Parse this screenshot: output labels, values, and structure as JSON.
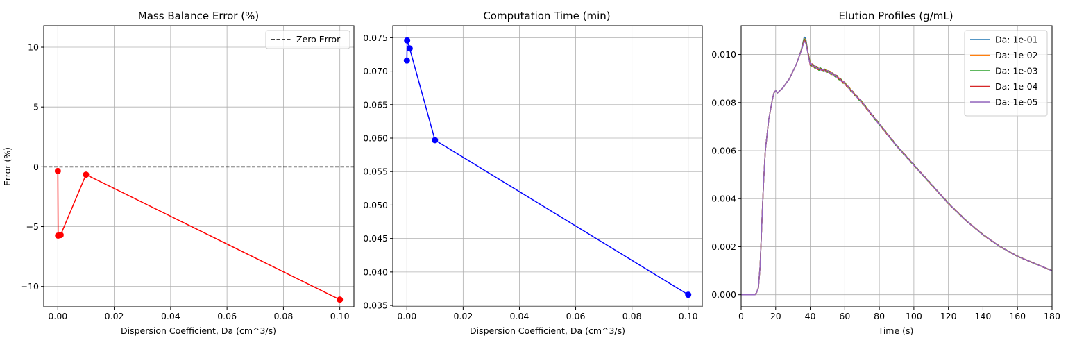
{
  "chart_data": [
    {
      "type": "line",
      "title": "Mass Balance Error (%)",
      "xlabel": "Dispersion Coefficient, Da (cm^3/s)",
      "ylabel": "Error (%)",
      "xlim": [
        -0.005,
        0.105
      ],
      "ylim": [
        -11.7,
        11.8
      ],
      "xticks": [
        0.0,
        0.02,
        0.04,
        0.06,
        0.08,
        0.1
      ],
      "xtick_labels": [
        "0.00",
        "0.02",
        "0.04",
        "0.06",
        "0.08",
        "0.10"
      ],
      "yticks": [
        -10,
        -5,
        0,
        5,
        10
      ],
      "ytick_labels": [
        "−10",
        "−5",
        "0",
        "5",
        "10"
      ],
      "grid": true,
      "legend_position": "top-right",
      "series": [
        {
          "x": [
            1e-05,
            0.0001,
            0.001,
            0.01,
            0.1
          ],
          "y": [
            -0.35,
            -5.75,
            -5.7,
            -0.65,
            -11.1
          ],
          "color": "#ff0000",
          "marker": "circle"
        }
      ],
      "reference_lines": [
        {
          "y": 0,
          "name": "Zero Error",
          "color": "#000000",
          "style": "dashed"
        }
      ]
    },
    {
      "type": "line",
      "title": "Computation Time (min)",
      "xlabel": "Dispersion Coefficient, Da (cm^3/s)",
      "ylabel": "",
      "xlim": [
        -0.005,
        0.105
      ],
      "ylim": [
        0.0348,
        0.0768
      ],
      "xticks": [
        0.0,
        0.02,
        0.04,
        0.06,
        0.08,
        0.1
      ],
      "xtick_labels": [
        "0.00",
        "0.02",
        "0.04",
        "0.06",
        "0.08",
        "0.10"
      ],
      "yticks": [
        0.035,
        0.04,
        0.045,
        0.05,
        0.055,
        0.06,
        0.065,
        0.07,
        0.075
      ],
      "ytick_labels": [
        "0.035",
        "0.040",
        "0.045",
        "0.050",
        "0.055",
        "0.060",
        "0.065",
        "0.070",
        "0.075"
      ],
      "grid": true,
      "series": [
        {
          "x": [
            1e-05,
            0.0001,
            0.001,
            0.01,
            0.1
          ],
          "y": [
            0.0716,
            0.0746,
            0.0734,
            0.0597,
            0.0366
          ],
          "color": "#0000ff",
          "marker": "circle"
        }
      ]
    },
    {
      "type": "line",
      "title": "Elution Profiles (g/mL)",
      "xlabel": "Time (s)",
      "ylabel": "",
      "xlim": [
        0,
        180
      ],
      "ylim": [
        -0.0005,
        0.0112
      ],
      "xticks": [
        0,
        20,
        40,
        60,
        80,
        100,
        120,
        140,
        160,
        180
      ],
      "xtick_labels": [
        "0",
        "20",
        "40",
        "60",
        "80",
        "100",
        "120",
        "140",
        "160",
        "180"
      ],
      "yticks": [
        0,
        0.002,
        0.004,
        0.006,
        0.008,
        0.01
      ],
      "ytick_labels": [
        "0.000",
        "0.002",
        "0.004",
        "0.006",
        "0.008",
        "0.010"
      ],
      "grid": true,
      "legend_position": "top-right",
      "base_profile": {
        "x": [
          0,
          8,
          9,
          10,
          11,
          12,
          13,
          14,
          16,
          18,
          19,
          20,
          21,
          24,
          28,
          32,
          35,
          36.5,
          37.5,
          38.5,
          40,
          45,
          50,
          55,
          60,
          65,
          70,
          80,
          90,
          100,
          110,
          120,
          130,
          140,
          150,
          160,
          170,
          180
        ],
        "y": [
          0,
          0,
          0.0001,
          0.0003,
          0.0012,
          0.003,
          0.0047,
          0.006,
          0.0073,
          0.0081,
          0.0084,
          0.0085,
          0.0084,
          0.0086,
          0.009,
          0.0096,
          0.0102,
          0.0106,
          0.0105,
          0.0101,
          0.0096,
          0.0094,
          0.0093,
          0.0091,
          0.0088,
          0.0084,
          0.008,
          0.0071,
          0.0062,
          0.0054,
          0.0046,
          0.0038,
          0.0031,
          0.0025,
          0.002,
          0.0016,
          0.0013,
          0.001
        ]
      },
      "series": [
        {
          "name": "Da: 1e-01",
          "color": "#1f77b4",
          "peak_offset": 0.00015,
          "noise": 2e-05
        },
        {
          "name": "Da: 1e-02",
          "color": "#ff7f0e",
          "peak_offset": 8e-05,
          "noise": 5e-05
        },
        {
          "name": "Da: 1e-03",
          "color": "#2ca02c",
          "peak_offset": 5e-05,
          "noise": 7e-05
        },
        {
          "name": "Da: 1e-04",
          "color": "#d62728",
          "peak_offset": 0.0,
          "noise": 5e-05
        },
        {
          "name": "Da: 1e-05",
          "color": "#9467bd",
          "peak_offset": -5e-05,
          "noise": 4e-05
        }
      ]
    }
  ]
}
